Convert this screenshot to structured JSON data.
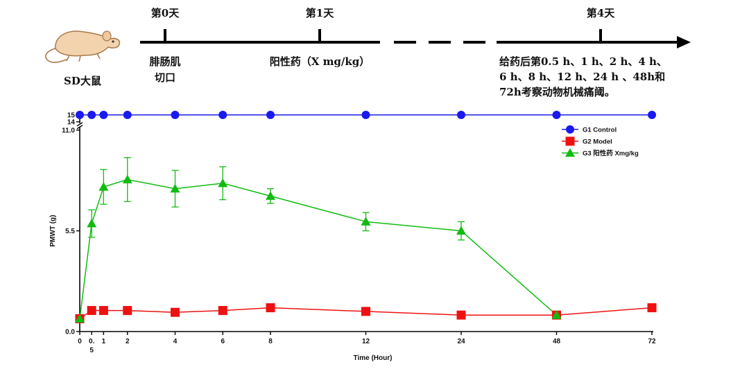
{
  "timeline": {
    "animal_label": "SD大鼠",
    "markers": [
      {
        "label": "第0天"
      },
      {
        "label": "第1天"
      },
      {
        "label": "第4天"
      }
    ],
    "step1_lines": [
      "腓肠肌",
      "切口"
    ],
    "step2": "阳性药（X mg/kg）",
    "step3_lines": [
      "给药后第0.5 h、1 h、2 h、4 h、",
      "6 h、8 h、12 h、24 h 、48h和",
      "72h考察动物机械痛阈。"
    ]
  },
  "chart_data": {
    "type": "line",
    "xlabel": "Time (Hour)",
    "ylabel": "PMWT (g)",
    "x": [
      "0",
      "0.5",
      "1",
      "2",
      "4",
      "6",
      "8",
      "12",
      "24",
      "48",
      "72"
    ],
    "x_tick_lines": [
      [
        "0"
      ],
      [
        "0.",
        "5"
      ],
      [
        "1"
      ],
      [
        "2"
      ],
      [
        "4"
      ],
      [
        "6"
      ],
      [
        "8"
      ],
      [
        "12"
      ],
      [
        "24"
      ],
      [
        "48"
      ],
      [
        "72"
      ]
    ],
    "x_axis_note": "categorical spacing; 12, 24, 48 and 72 h placed at equal steps after 8",
    "ylim": [
      0,
      11.0
    ],
    "yticks": [
      "0.0",
      "5.5",
      "11.0"
    ],
    "y_break_segment": {
      "range": [
        14,
        15
      ],
      "ticks": [
        "14",
        "15"
      ]
    },
    "legend_position": "top-right",
    "series": [
      {
        "name": "G1 Control",
        "marker": "circle",
        "color": "#1a1aee",
        "values": [
          15,
          15,
          15,
          15,
          15,
          15,
          15,
          15,
          15,
          15,
          15
        ],
        "errors": null
      },
      {
        "name": "G2 Model",
        "marker": "square",
        "color": "#ee1111",
        "values": [
          0.7,
          1.15,
          1.15,
          1.15,
          1.05,
          1.15,
          1.3,
          1.1,
          0.9,
          0.9,
          1.3
        ],
        "errors": null
      },
      {
        "name": "G3 阳性药 Xmg/kg",
        "marker": "triangle",
        "color": "#11bb11",
        "values": [
          0.7,
          5.9,
          7.9,
          8.3,
          7.8,
          8.1,
          7.4,
          6.0,
          5.5,
          0.9,
          null
        ],
        "errors": [
          0,
          0.75,
          0.95,
          1.2,
          1.0,
          0.9,
          0.4,
          0.5,
          0.5,
          0,
          null
        ]
      }
    ]
  }
}
